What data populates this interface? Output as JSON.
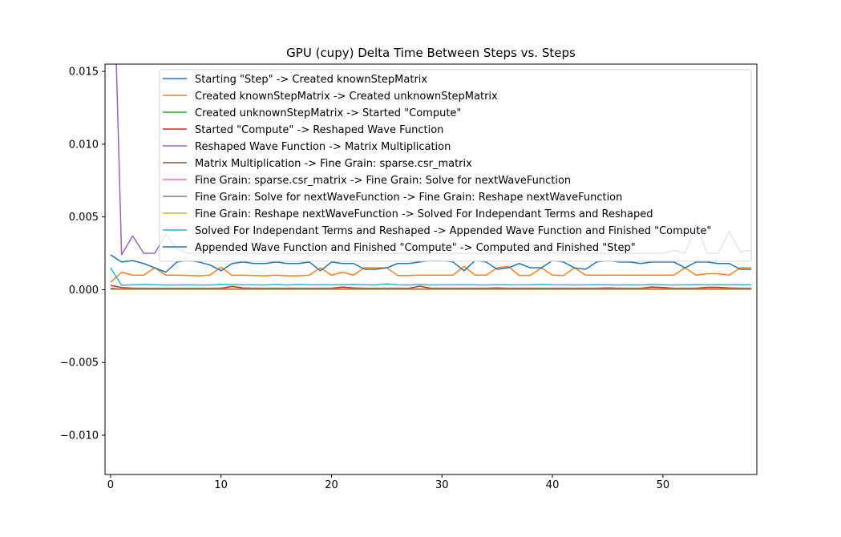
{
  "chart_data": {
    "type": "line",
    "title": "GPU (cupy) Delta Time Between Steps vs. Steps",
    "xlabel": "",
    "ylabel": "",
    "xlim": [
      -0.5,
      58.5
    ],
    "ylim": [
      -0.0127,
      0.0155
    ],
    "xticks": [
      0,
      10,
      20,
      30,
      40,
      50
    ],
    "yticks": [
      -0.01,
      -0.005,
      0.0,
      0.005,
      0.01,
      0.015
    ],
    "ytick_labels": [
      "−0.010",
      "−0.005",
      "0.000",
      "0.005",
      "0.010",
      "0.015"
    ],
    "legend_position": "upper-right",
    "grid": false,
    "series": [
      {
        "name": "Starting \"Step\" -> Created knownStepMatrix",
        "color": "#1f77b4",
        "values": [
          0.0001,
          5e-05,
          5e-05,
          5e-05,
          5e-05,
          5e-05,
          5e-05,
          5e-05,
          5e-05,
          5e-05,
          5e-05,
          5e-05,
          5e-05,
          5e-05,
          5e-05,
          5e-05,
          5e-05,
          5e-05,
          5e-05,
          5e-05,
          5e-05,
          5e-05,
          5e-05,
          5e-05,
          5e-05,
          5e-05,
          5e-05,
          5e-05,
          5e-05,
          5e-05,
          5e-05,
          5e-05,
          5e-05,
          5e-05,
          5e-05,
          5e-05,
          5e-05,
          5e-05,
          5e-05,
          5e-05,
          5e-05,
          5e-05,
          5e-05,
          5e-05,
          5e-05,
          5e-05,
          5e-05,
          5e-05,
          5e-05,
          5e-05,
          5e-05,
          5e-05,
          5e-05,
          5e-05,
          5e-05,
          5e-05,
          5e-05,
          5e-05,
          5e-05
        ]
      },
      {
        "name": "Created knownStepMatrix -> Created unknownStepMatrix",
        "color": "#ff7f0e",
        "values": [
          0.0005,
          0.0012,
          0.001,
          0.001,
          0.0015,
          0.001,
          0.001,
          0.00098,
          0.00095,
          0.001,
          0.00155,
          0.00098,
          0.001,
          0.00097,
          0.00095,
          0.001,
          0.00095,
          0.00095,
          0.001,
          0.0015,
          0.001,
          0.0012,
          0.001,
          0.00152,
          0.0015,
          0.0015,
          0.00097,
          0.00097,
          0.001,
          0.001,
          0.001,
          0.001,
          0.0016,
          0.001,
          0.001,
          0.0015,
          0.0016,
          0.00098,
          0.00098,
          0.0015,
          0.001,
          0.00097,
          0.0015,
          0.001,
          0.001,
          0.001,
          0.001,
          0.001,
          0.001,
          0.001,
          0.001,
          0.001,
          0.0015,
          0.001,
          0.0011,
          0.0011,
          0.001,
          0.0015,
          0.0015
        ]
      },
      {
        "name": "Created unknownStepMatrix -> Started \"Compute\"",
        "color": "#2ca02c",
        "values": [
          2e-05,
          2e-05,
          2e-05,
          2e-05,
          2e-05,
          2e-05,
          2e-05,
          2e-05,
          2e-05,
          2e-05,
          2e-05,
          2e-05,
          2e-05,
          2e-05,
          2e-05,
          2e-05,
          2e-05,
          2e-05,
          2e-05,
          2e-05,
          2e-05,
          2e-05,
          2e-05,
          2e-05,
          2e-05,
          2e-05,
          2e-05,
          2e-05,
          2e-05,
          2e-05,
          2e-05,
          2e-05,
          2e-05,
          2e-05,
          2e-05,
          2e-05,
          2e-05,
          2e-05,
          2e-05,
          2e-05,
          2e-05,
          2e-05,
          2e-05,
          2e-05,
          2e-05,
          2e-05,
          2e-05,
          2e-05,
          2e-05,
          2e-05,
          2e-05,
          2e-05,
          2e-05,
          2e-05,
          2e-05,
          2e-05,
          2e-05,
          2e-05,
          2e-05
        ]
      },
      {
        "name": "Started \"Compute\" -> Reshaped Wave Function",
        "color": "#d62728",
        "values": [
          0.0003,
          0.00015,
          0.0001,
          0.0001,
          0.0001,
          9e-05,
          0.0001,
          0.0001,
          9e-05,
          0.0001,
          0.0001,
          0.00022,
          0.00012,
          0.0001,
          0.0001,
          0.0001,
          0.0001,
          0.0001,
          0.0001,
          0.0001,
          0.0001,
          0.00018,
          0.00012,
          0.0001,
          0.0001,
          0.0001,
          0.0001,
          0.0001,
          0.00024,
          0.0001,
          0.0001,
          0.0001,
          0.0001,
          0.0001,
          0.0001,
          0.00012,
          0.0001,
          0.0001,
          0.0001,
          0.0001,
          0.0001,
          0.0001,
          0.0001,
          0.0001,
          0.0001,
          0.00012,
          0.0001,
          0.0001,
          0.0001,
          0.00018,
          0.00015,
          0.0001,
          0.0001,
          0.0001,
          0.00016,
          0.00016,
          0.00012,
          0.0001,
          0.0001
        ]
      },
      {
        "name": "Reshaped Wave Function -> Matrix Multiplication",
        "color": "#9467bd",
        "values": [
          0.03,
          0.0024,
          0.0037,
          0.0025,
          0.0025,
          0.0038,
          0.0028,
          0.0025,
          0.0025,
          0.0025,
          0.0025,
          0.0025,
          0.0025,
          0.0025,
          0.0025,
          0.0025,
          0.0025,
          0.0025,
          0.0025,
          0.0025,
          0.0025,
          0.0025,
          0.0025,
          0.0025,
          0.0025,
          0.0025,
          0.0025,
          0.0025,
          0.0025,
          0.0025,
          0.0025,
          0.0025,
          0.0025,
          0.0025,
          0.0025,
          0.0025,
          0.0025,
          0.0025,
          0.0025,
          0.0025,
          0.0025,
          0.0025,
          0.0025,
          0.0025,
          0.0025,
          0.0025,
          0.0025,
          0.0025,
          0.0025,
          0.0025,
          0.0025,
          0.0027,
          0.0025,
          0.0045,
          0.0025,
          0.0025,
          0.004,
          0.0026,
          0.0027
        ]
      },
      {
        "name": "Matrix Multiplication -> Fine Grain: sparse.csr_matrix",
        "color": "#8c564b",
        "values": [
          5e-05,
          5e-05,
          5e-05,
          5e-05,
          5e-05,
          5e-05,
          5e-05,
          5e-05,
          5e-05,
          5e-05,
          5e-05,
          5e-05,
          5e-05,
          5e-05,
          5e-05,
          5e-05,
          5e-05,
          5e-05,
          5e-05,
          5e-05,
          5e-05,
          5e-05,
          5e-05,
          5e-05,
          5e-05,
          5e-05,
          5e-05,
          5e-05,
          5e-05,
          5e-05,
          5e-05,
          5e-05,
          5e-05,
          5e-05,
          5e-05,
          5e-05,
          5e-05,
          5e-05,
          5e-05,
          5e-05,
          5e-05,
          5e-05,
          5e-05,
          5e-05,
          5e-05,
          5e-05,
          5e-05,
          5e-05,
          5e-05,
          5e-05,
          5e-05,
          5e-05,
          5e-05,
          5e-05,
          5e-05,
          5e-05,
          5e-05,
          5e-05,
          5e-05
        ]
      },
      {
        "name": "Fine Grain: sparse.csr_matrix -> Fine Grain: Solve for nextWaveFunction",
        "color": "#e377c2",
        "values": [
          3e-05,
          3e-05,
          3e-05,
          3e-05,
          3e-05,
          3e-05,
          3e-05,
          3e-05,
          3e-05,
          3e-05,
          3e-05,
          3e-05,
          3e-05,
          3e-05,
          3e-05,
          3e-05,
          3e-05,
          3e-05,
          3e-05,
          3e-05,
          3e-05,
          3e-05,
          3e-05,
          3e-05,
          3e-05,
          3e-05,
          3e-05,
          3e-05,
          3e-05,
          3e-05,
          3e-05,
          3e-05,
          3e-05,
          3e-05,
          3e-05,
          3e-05,
          3e-05,
          3e-05,
          3e-05,
          3e-05,
          3e-05,
          3e-05,
          3e-05,
          3e-05,
          3e-05,
          3e-05,
          3e-05,
          3e-05,
          3e-05,
          3e-05,
          3e-05,
          3e-05,
          3e-05,
          3e-05,
          3e-05,
          3e-05,
          3e-05,
          3e-05,
          3e-05
        ]
      },
      {
        "name": "Fine Grain: Solve for nextWaveFunction -> Fine Grain: Reshape nextWaveFunction",
        "color": "#7f7f7f",
        "values": [
          2e-05,
          2e-05,
          2e-05,
          2e-05,
          2e-05,
          2e-05,
          2e-05,
          2e-05,
          2e-05,
          2e-05,
          2e-05,
          2e-05,
          2e-05,
          2e-05,
          2e-05,
          2e-05,
          2e-05,
          2e-05,
          2e-05,
          2e-05,
          2e-05,
          2e-05,
          2e-05,
          2e-05,
          2e-05,
          2e-05,
          2e-05,
          2e-05,
          2e-05,
          2e-05,
          2e-05,
          2e-05,
          2e-05,
          2e-05,
          2e-05,
          2e-05,
          2e-05,
          2e-05,
          2e-05,
          2e-05,
          2e-05,
          2e-05,
          2e-05,
          2e-05,
          2e-05,
          2e-05,
          2e-05,
          2e-05,
          2e-05,
          2e-05,
          2e-05,
          2e-05,
          2e-05,
          2e-05,
          2e-05,
          2e-05,
          2e-05,
          2e-05,
          2e-05
        ]
      },
      {
        "name": "Fine Grain: Reshape nextWaveFunction -> Solved For Independant Terms and Reshaped",
        "color": "#bcbd22",
        "values": [
          1e-05,
          1e-05,
          1e-05,
          1e-05,
          1e-05,
          1e-05,
          1e-05,
          1e-05,
          1e-05,
          1e-05,
          1e-05,
          1e-05,
          1e-05,
          1e-05,
          1e-05,
          1e-05,
          1e-05,
          1e-05,
          1e-05,
          1e-05,
          1e-05,
          1e-05,
          1e-05,
          1e-05,
          1e-05,
          1e-05,
          1e-05,
          1e-05,
          1e-05,
          1e-05,
          1e-05,
          1e-05,
          1e-05,
          1e-05,
          1e-05,
          1e-05,
          1e-05,
          1e-05,
          1e-05,
          1e-05,
          1e-05,
          1e-05,
          1e-05,
          1e-05,
          1e-05,
          1e-05,
          1e-05,
          1e-05,
          1e-05,
          1e-05,
          1e-05,
          1e-05,
          1e-05,
          1e-05,
          1e-05,
          1e-05,
          1e-05,
          1e-05,
          1e-05
        ]
      },
      {
        "name": "Solved For Independant Terms and Reshaped -> Appended Wave Function and Finished \"Compute\"",
        "color": "#17becf",
        "values": [
          0.0015,
          0.0003,
          0.00033,
          0.00035,
          0.00033,
          0.00032,
          0.00032,
          0.00033,
          0.00032,
          0.00032,
          0.00036,
          0.00034,
          0.00033,
          0.00033,
          0.00032,
          0.00036,
          0.00032,
          0.00036,
          0.00033,
          0.00034,
          0.00033,
          0.00034,
          0.00035,
          0.00033,
          0.00032,
          0.0004,
          0.00033,
          0.00032,
          0.00035,
          0.00032,
          0.00033,
          0.00033,
          0.00034,
          0.00033,
          0.00032,
          0.00034,
          0.00033,
          0.00033,
          0.00033,
          0.00036,
          0.00033,
          0.00033,
          0.00032,
          0.00033,
          0.00034,
          0.00033,
          0.00032,
          0.00033,
          0.00032,
          0.00035,
          0.00033,
          0.00032,
          0.00033,
          0.00034,
          0.00033,
          0.00034,
          0.00033,
          0.00034,
          0.00033
        ]
      },
      {
        "name": "Appended Wave Function and Finished \"Compute\" -> Computed and Finished \"Step\"",
        "color": "#1f77b4",
        "values": [
          0.0024,
          0.0019,
          0.002,
          0.0018,
          0.0015,
          0.0012,
          0.0019,
          0.002,
          0.0019,
          0.0017,
          0.0013,
          0.0018,
          0.0019,
          0.0018,
          0.0018,
          0.0019,
          0.0018,
          0.0018,
          0.0019,
          0.0013,
          0.0019,
          0.0018,
          0.0018,
          0.0014,
          0.0014,
          0.0015,
          0.0018,
          0.0018,
          0.0019,
          0.002,
          0.002,
          0.0019,
          0.0013,
          0.002,
          0.0019,
          0.0014,
          0.0015,
          0.0018,
          0.0015,
          0.0015,
          0.002,
          0.0019,
          0.0015,
          0.0014,
          0.0019,
          0.002,
          0.0019,
          0.0019,
          0.0018,
          0.0019,
          0.0019,
          0.0019,
          0.0015,
          0.0019,
          0.0019,
          0.0018,
          0.0018,
          0.0014,
          0.0014
        ]
      }
    ]
  }
}
